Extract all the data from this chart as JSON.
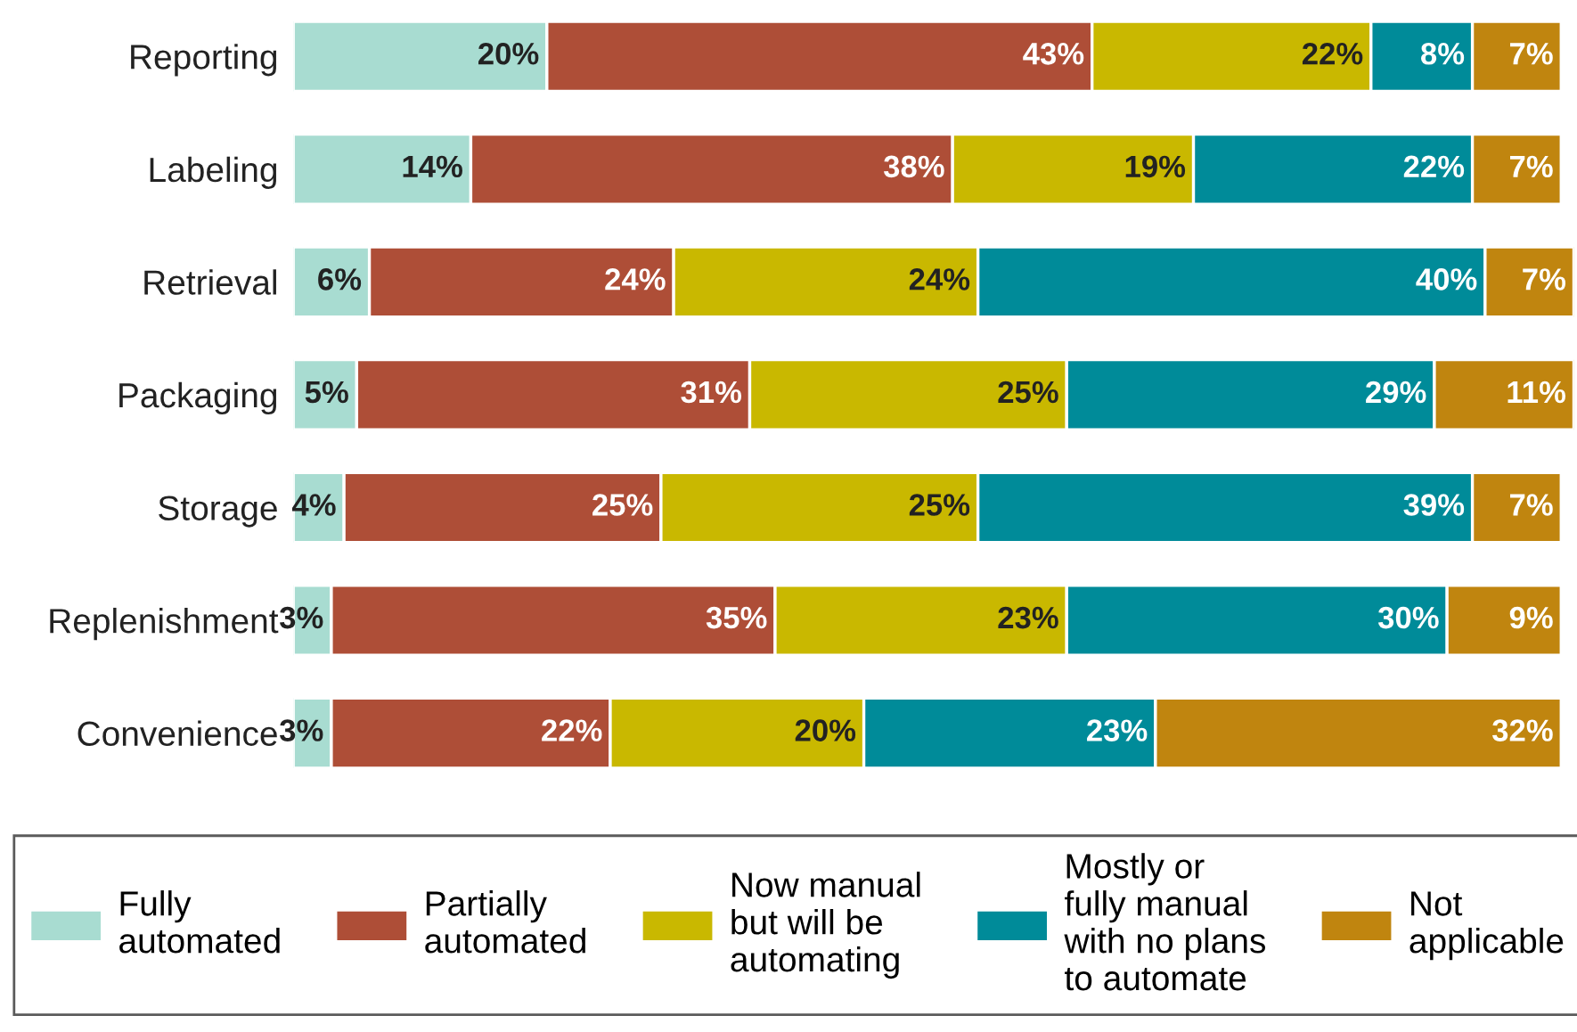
{
  "chart_data": {
    "type": "bar",
    "orientation": "horizontal",
    "stacked": true,
    "legend": "bottom",
    "grid": false,
    "categories": [
      "Reporting",
      "Labeling",
      "Retrieval",
      "Packaging",
      "Storage",
      "Replenishment",
      "Convenience"
    ],
    "series": [
      {
        "name": "Fully\nautomated",
        "color": "#a8dcd1",
        "values": [
          20,
          14,
          6,
          5,
          4,
          3,
          3
        ],
        "value_labels": [
          "20%",
          "14%",
          "6%",
          "5%",
          "4%",
          "3%",
          "3%"
        ]
      },
      {
        "name": "Partially\nautomated",
        "color": "#ae4e37",
        "values": [
          43,
          38,
          24,
          31,
          25,
          35,
          22
        ],
        "value_labels": [
          "43%",
          "38%",
          "24%",
          "31%",
          "25%",
          "35%",
          "22%"
        ]
      },
      {
        "name": "Now manual\nbut will be\nautomating",
        "color": "#c9b800",
        "values": [
          22,
          19,
          24,
          25,
          25,
          23,
          20
        ],
        "value_labels": [
          "22%",
          "19%",
          "24%",
          "25%",
          "25%",
          "23%",
          "20%"
        ]
      },
      {
        "name": "Mostly or\nfully manual\nwith no plans\nto automate",
        "color": "#008b99",
        "values": [
          8,
          22,
          40,
          29,
          39,
          30,
          23
        ],
        "value_labels": [
          "8%",
          "22%",
          "40%",
          "29%",
          "39%",
          "30%",
          "23%"
        ]
      },
      {
        "name": "Not\napplicable",
        "color": "#c0850f",
        "values": [
          7,
          7,
          7,
          11,
          7,
          9,
          32
        ],
        "value_labels": [
          "7%",
          "7%",
          "7%",
          "11%",
          "7%",
          "9%",
          "32%"
        ]
      }
    ]
  }
}
